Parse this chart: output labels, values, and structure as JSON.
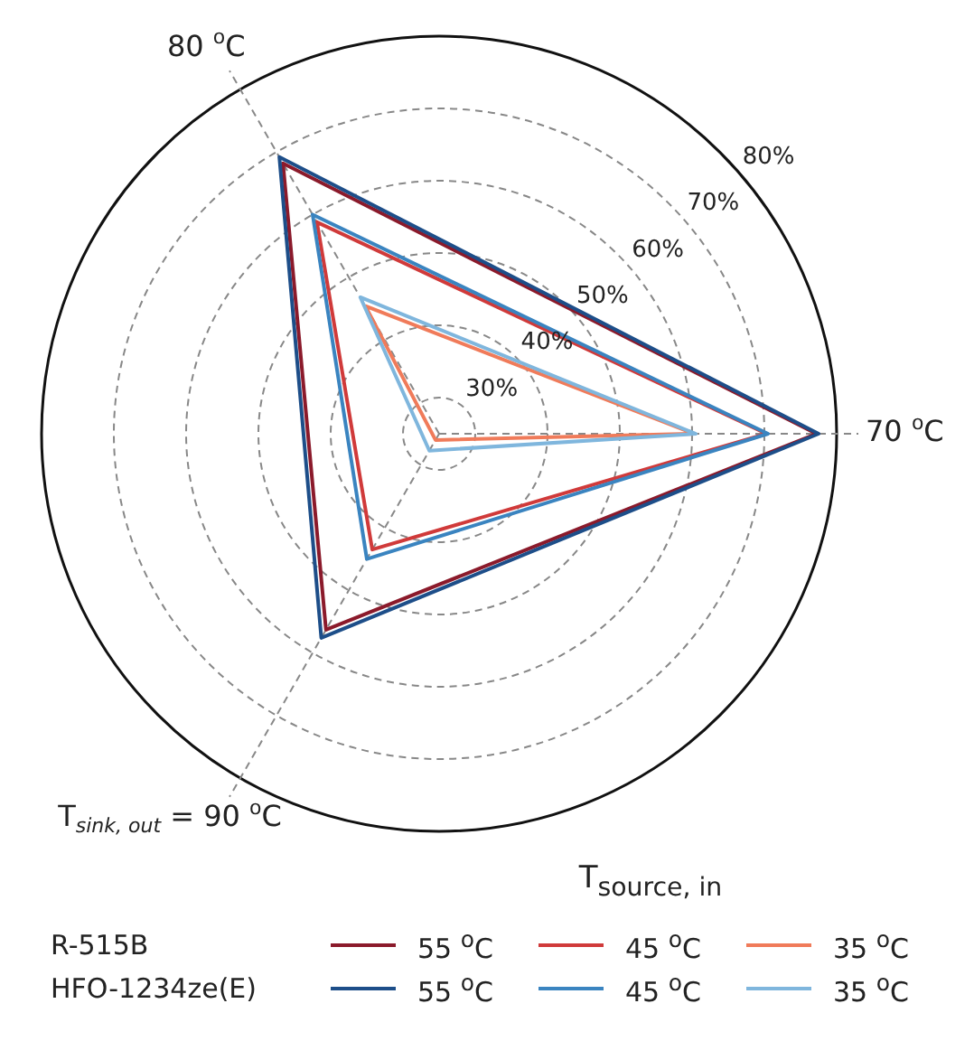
{
  "chart_data": {
    "type": "radar",
    "categories": [
      "70 $^{o}$C",
      "T$_{sink, out}$ = 90 $^{o}$C",
      "80 $^{o}$C"
    ],
    "series": [
      {
        "name": "55 $^{o}$C",
        "color": "#8b1a2b",
        "values": [
          77.2,
          56.3,
          68.2
        ]
      },
      {
        "name": "45 $^{o}$C",
        "color": "#d03a3a",
        "values": [
          70.3,
          43.5,
          58.8
        ]
      },
      {
        "name": "35 $^{o}$C",
        "color": "#f07b5a",
        "values": [
          60.3,
          26,
          45.4
        ]
      },
      {
        "name": "55 $^{o}$C",
        "color": "#1d4e89",
        "values": [
          77.5,
          57.6,
          69.2
        ]
      },
      {
        "name": "45 $^{o}$C",
        "color": "#3a84c0",
        "values": [
          70.5,
          45,
          60
        ]
      },
      {
        "name": "35 $^{o}$C",
        "color": "#7fb6dd",
        "values": [
          60.5,
          27.7,
          46.8
        ]
      }
    ],
    "ylim": [
      25,
      80
    ],
    "yticks": [
      {
        "value": 30,
        "label": "30%"
      },
      {
        "value": 40,
        "label": "40%"
      },
      {
        "value": 50,
        "label": "50%"
      },
      {
        "value": 60,
        "label": "60%"
      },
      {
        "value": 70,
        "label": "70%"
      },
      {
        "value": 80,
        "label": "80%"
      }
    ],
    "grid": true,
    "marker": "none",
    "line_style": "solid",
    "legend": "bottom",
    "legend_title": "T$_{source, in}$",
    "annotations": [
      "R-515B",
      "HFO-1234ze(E)"
    ]
  }
}
